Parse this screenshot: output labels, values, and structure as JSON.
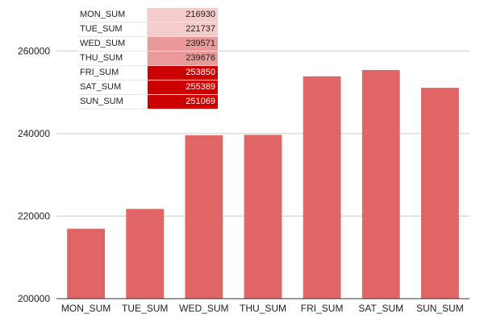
{
  "colors": {
    "bar": "#e06666",
    "grid": "#cccccc",
    "axis": "#333333",
    "table_shades": [
      "#f4cccc",
      "#f4cccc",
      "#ea9999",
      "#ea9999",
      "#cc0000",
      "#cc0000",
      "#cc0000"
    ],
    "table_text": [
      "#222222",
      "#222222",
      "#222222",
      "#222222",
      "#ffffff",
      "#ffffff",
      "#ffffff"
    ]
  },
  "chart_data": {
    "type": "bar",
    "title": "",
    "xlabel": "",
    "ylabel": "",
    "categories": [
      "MON_SUM",
      "TUE_SUM",
      "WED_SUM",
      "THU_SUM",
      "FRI_SUM",
      "SAT_SUM",
      "SUN_SUM"
    ],
    "values": [
      216930,
      221737,
      239571,
      239676,
      253850,
      255389,
      251069
    ],
    "ylim": [
      200000,
      270000
    ],
    "yticks": [
      200000,
      220000,
      240000,
      260000
    ],
    "grid": true,
    "legend": "none"
  },
  "table": {
    "rows": [
      {
        "name": "MON_SUM",
        "value": "216930"
      },
      {
        "name": "TUE_SUM",
        "value": "221737"
      },
      {
        "name": "WED_SUM",
        "value": "239571"
      },
      {
        "name": "THU_SUM",
        "value": "239676"
      },
      {
        "name": "FRI_SUM",
        "value": "253850"
      },
      {
        "name": "SAT_SUM",
        "value": "255389"
      },
      {
        "name": "SUN_SUM",
        "value": "251069"
      }
    ]
  }
}
